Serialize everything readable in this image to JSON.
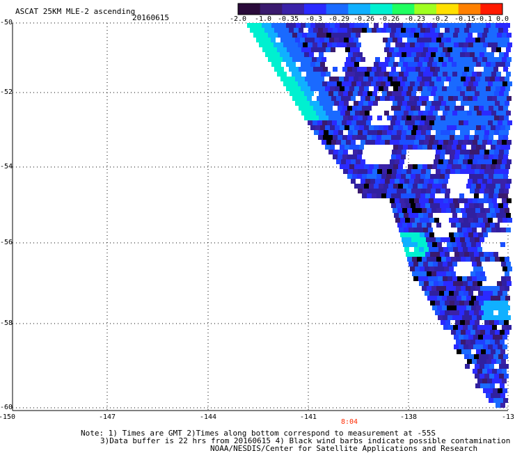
{
  "header": {
    "title": "ASCAT 25KM MLE-2 ascending",
    "date": "20160615"
  },
  "colorbar": {
    "labels": [
      "-2.0",
      "-1.0",
      "-0.35",
      "-0.3",
      "-0.29",
      "-0.26",
      "-0.26",
      "-0.23",
      "-0.2",
      "-0.15",
      "-0.1",
      "0.0"
    ],
    "colors": [
      "#2a0a3a",
      "#3a1a6e",
      "#3a22a8",
      "#2a2aff",
      "#1a6aff",
      "#10b0ff",
      "#00f0d0",
      "#20ff60",
      "#a0ff20",
      "#ffe000",
      "#ff8000",
      "#ff1a00"
    ]
  },
  "axes": {
    "lat_labels": [
      "-50",
      "-52",
      "-54",
      "-56",
      "-58",
      "-60"
    ],
    "lon_labels": [
      "-150",
      "-147",
      "-144",
      "-141",
      "-138",
      "-13"
    ]
  },
  "time_label": "8:04",
  "notes": [
    "Note: 1) Times are GMT 2)Times along bottom correspond to measurement at -55S",
    "3)Data buffer is 22 hrs from 20160615 4) Black wind barbs indicate possible contamination",
    "NOAA/NESDIS/Center for Satellite Applications and Research"
  ]
}
